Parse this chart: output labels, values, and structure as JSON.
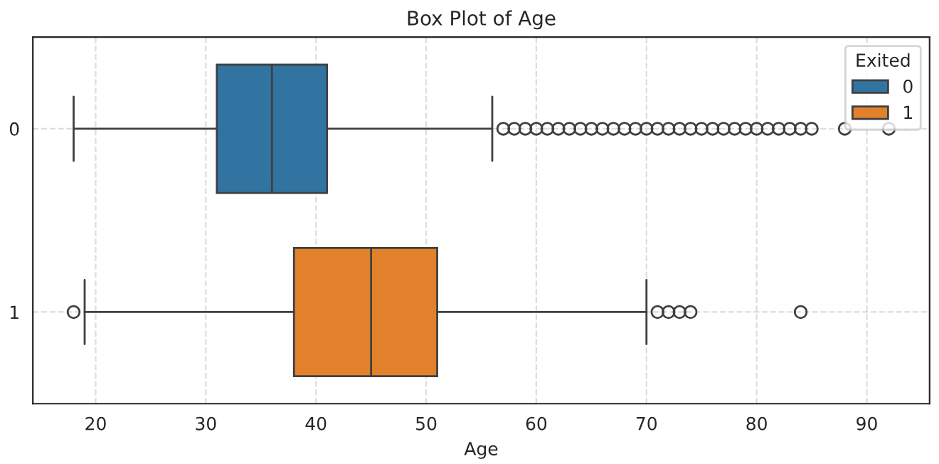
{
  "chart_data": {
    "type": "box",
    "title": "Box Plot of Age",
    "xlabel": "Age",
    "orientation": "horizontal",
    "categories": [
      "0",
      "1"
    ],
    "legend_title": "Exited",
    "legend": "top right",
    "grid": true,
    "xlim": [
      14.3,
      95.7
    ],
    "xticks": [
      20,
      30,
      40,
      50,
      60,
      70,
      80,
      90
    ],
    "series": [
      {
        "name": "0",
        "color": "#3274a1",
        "boxes": [
          {
            "low": 18,
            "q1": 31,
            "median": 36,
            "q3": 41,
            "high": 56,
            "outliers": [
              57,
              58,
              59,
              60,
              61,
              62,
              63,
              64,
              65,
              66,
              67,
              68,
              69,
              70,
              71,
              72,
              73,
              74,
              75,
              76,
              77,
              78,
              79,
              80,
              81,
              82,
              83,
              84,
              85,
              88,
              92
            ]
          },
          null
        ]
      },
      {
        "name": "1",
        "color": "#e1812c",
        "boxes": [
          null,
          {
            "low": 19,
            "q1": 38,
            "median": 45,
            "q3": 51,
            "high": 70,
            "outliers": [
              18,
              71,
              72,
              73,
              74,
              84
            ]
          }
        ]
      }
    ]
  }
}
